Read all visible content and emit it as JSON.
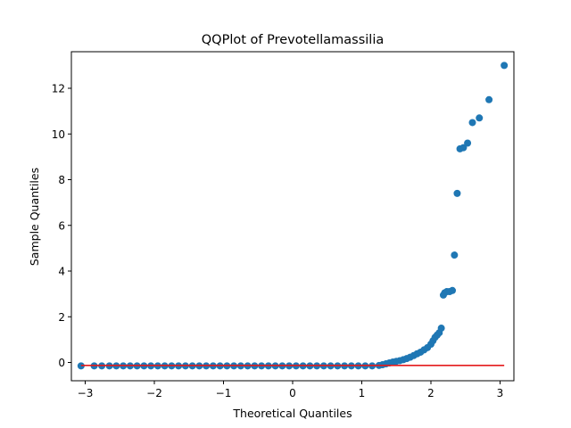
{
  "chart_data": {
    "type": "scatter",
    "title": "QQPlot of Prevotellamassilia",
    "xlabel": "Theoretical Quantiles",
    "ylabel": "Sample Quantiles",
    "xlim": [
      -3.2,
      3.2
    ],
    "ylim": [
      -0.8,
      13.6
    ],
    "xticks": [
      -3,
      -2,
      -1,
      0,
      1,
      2,
      3
    ],
    "yticks": [
      0,
      2,
      4,
      6,
      8,
      10,
      12
    ],
    "grid": false,
    "colors": {
      "points": "#1f77b4",
      "reference_line": "#e41a1c"
    },
    "reference_line": {
      "x": [
        -3.06,
        3.06
      ],
      "y": [
        -0.13,
        -0.13
      ]
    },
    "series": [
      {
        "x": [
          -3.06,
          -2.87,
          -2.76,
          -2.65,
          -2.55,
          -2.45,
          -2.35,
          -2.25,
          -2.15,
          -2.05,
          -1.95,
          -1.85,
          -1.75,
          -1.65,
          -1.55,
          -1.45,
          -1.35,
          -1.25,
          -1.15,
          -1.05,
          -0.95,
          -0.85,
          -0.75,
          -0.65,
          -0.55,
          -0.45,
          -0.35,
          -0.25,
          -0.15,
          -0.05,
          0.05,
          0.15,
          0.25,
          0.35,
          0.45,
          0.55,
          0.65,
          0.75,
          0.85,
          0.95,
          1.05,
          1.15,
          1.25,
          1.3,
          1.35,
          1.4,
          1.45,
          1.5,
          1.55,
          1.6,
          1.65,
          1.7,
          1.75,
          1.8,
          1.85,
          1.9,
          1.95,
          2.0,
          2.03,
          2.06,
          2.09,
          2.12,
          2.15,
          2.18,
          2.2,
          2.23,
          2.27,
          2.31,
          2.34,
          2.38,
          2.42,
          2.47,
          2.53,
          2.6,
          2.7,
          2.84,
          3.06
        ],
        "y": [
          -0.15,
          -0.15,
          -0.15,
          -0.15,
          -0.15,
          -0.15,
          -0.15,
          -0.15,
          -0.15,
          -0.15,
          -0.15,
          -0.15,
          -0.15,
          -0.15,
          -0.15,
          -0.15,
          -0.15,
          -0.15,
          -0.15,
          -0.15,
          -0.15,
          -0.15,
          -0.15,
          -0.15,
          -0.15,
          -0.15,
          -0.15,
          -0.15,
          -0.15,
          -0.15,
          -0.15,
          -0.15,
          -0.15,
          -0.15,
          -0.15,
          -0.15,
          -0.15,
          -0.15,
          -0.15,
          -0.15,
          -0.15,
          -0.15,
          -0.13,
          -0.1,
          -0.06,
          -0.02,
          0.02,
          0.05,
          0.08,
          0.12,
          0.17,
          0.23,
          0.3,
          0.38,
          0.45,
          0.55,
          0.65,
          0.8,
          0.95,
          1.1,
          1.2,
          1.3,
          1.5,
          2.95,
          3.05,
          3.1,
          3.1,
          3.15,
          4.7,
          7.4,
          9.35,
          9.4,
          9.6,
          10.5,
          10.7,
          11.5,
          13.0
        ]
      }
    ]
  }
}
